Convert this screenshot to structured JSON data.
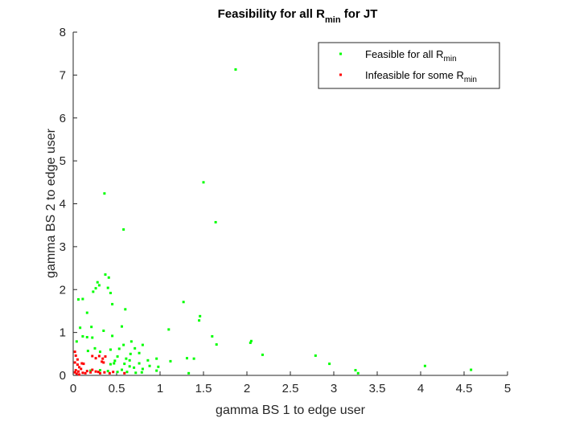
{
  "chart_data": {
    "type": "scatter",
    "title": {
      "main": "Feasibility for all R",
      "sub": "min",
      "tail": " for JT"
    },
    "xlabel": "gamma BS 1 to edge user",
    "ylabel": "gamma BS 2 to edge user",
    "xlim": [
      0,
      5
    ],
    "ylim": [
      0,
      8
    ],
    "xticks": [
      0,
      0.5,
      1,
      1.5,
      2,
      2.5,
      3,
      3.5,
      4,
      4.5,
      5
    ],
    "xtick_labels": [
      "0",
      "0.5",
      "1",
      "1.5",
      "2",
      "2.5",
      "3",
      "3.5",
      "4",
      "4.5",
      "5"
    ],
    "yticks": [
      0,
      1,
      2,
      3,
      4,
      5,
      6,
      7,
      8
    ],
    "ytick_labels": [
      "0",
      "1",
      "2",
      "3",
      "4",
      "5",
      "6",
      "7",
      "8"
    ],
    "grid": false,
    "legend_position": "top-right",
    "series": [
      {
        "name": "Feasible for all R",
        "name_sub": "min",
        "color": "#00ff00",
        "points": [
          [
            1.87,
            7.13
          ],
          [
            1.5,
            4.5
          ],
          [
            1.64,
            3.57
          ],
          [
            0.36,
            4.24
          ],
          [
            0.58,
            3.4
          ],
          [
            0.37,
            2.35
          ],
          [
            0.41,
            2.28
          ],
          [
            0.28,
            2.17
          ],
          [
            0.3,
            2.1
          ],
          [
            0.23,
            1.95
          ],
          [
            0.26,
            2.03
          ],
          [
            0.4,
            2.04
          ],
          [
            0.43,
            1.92
          ],
          [
            0.06,
            1.77
          ],
          [
            0.11,
            1.78
          ],
          [
            0.45,
            1.66
          ],
          [
            0.6,
            1.54
          ],
          [
            0.16,
            1.46
          ],
          [
            1.27,
            1.71
          ],
          [
            1.46,
            1.38
          ],
          [
            1.45,
            1.28
          ],
          [
            0.08,
            1.11
          ],
          [
            0.21,
            1.13
          ],
          [
            0.56,
            1.14
          ],
          [
            0.35,
            1.04
          ],
          [
            0.45,
            0.92
          ],
          [
            1.1,
            1.07
          ],
          [
            1.6,
            0.91
          ],
          [
            0.11,
            0.91
          ],
          [
            0.16,
            0.89
          ],
          [
            0.22,
            0.88
          ],
          [
            0.04,
            0.79
          ],
          [
            0.67,
            0.79
          ],
          [
            0.58,
            0.71
          ],
          [
            0.8,
            0.71
          ],
          [
            1.65,
            0.72
          ],
          [
            2.05,
            0.8
          ],
          [
            2.04,
            0.76
          ],
          [
            0.25,
            0.63
          ],
          [
            0.43,
            0.6
          ],
          [
            0.53,
            0.62
          ],
          [
            0.71,
            0.63
          ],
          [
            0.17,
            0.57
          ],
          [
            0.31,
            0.55
          ],
          [
            0.76,
            0.52
          ],
          [
            0.66,
            0.5
          ],
          [
            0.51,
            0.44
          ],
          [
            0.96,
            0.39
          ],
          [
            1.31,
            0.4
          ],
          [
            1.39,
            0.39
          ],
          [
            1.12,
            0.33
          ],
          [
            0.48,
            0.34
          ],
          [
            0.61,
            0.39
          ],
          [
            0.65,
            0.35
          ],
          [
            0.59,
            0.27
          ],
          [
            0.76,
            0.28
          ],
          [
            0.86,
            0.35
          ],
          [
            0.65,
            0.21
          ],
          [
            0.7,
            0.18
          ],
          [
            0.8,
            0.15
          ],
          [
            0.88,
            0.22
          ],
          [
            0.98,
            0.2
          ],
          [
            0.43,
            0.26
          ],
          [
            0.47,
            0.28
          ],
          [
            0.51,
            0.08
          ],
          [
            0.56,
            0.13
          ],
          [
            0.62,
            0.08
          ],
          [
            0.72,
            0.06
          ],
          [
            0.79,
            0.07
          ],
          [
            0.96,
            0.11
          ],
          [
            0.31,
            0.12
          ],
          [
            0.4,
            0.1
          ],
          [
            0.2,
            0.11
          ],
          [
            1.33,
            0.05
          ],
          [
            2.18,
            0.48
          ],
          [
            2.79,
            0.46
          ],
          [
            2.95,
            0.27
          ],
          [
            3.25,
            0.12
          ],
          [
            3.28,
            0.05
          ],
          [
            4.05,
            0.22
          ],
          [
            4.58,
            0.13
          ]
        ]
      },
      {
        "name": "Infeasible for some R",
        "name_sub": "min",
        "color": "#ff0000",
        "points": [
          [
            0.02,
            0.55
          ],
          [
            0.03,
            0.46
          ],
          [
            0.05,
            0.37
          ],
          [
            0.02,
            0.3
          ],
          [
            0.05,
            0.25
          ],
          [
            0.07,
            0.19
          ],
          [
            0.03,
            0.12
          ],
          [
            0.06,
            0.09
          ],
          [
            0.02,
            0.07
          ],
          [
            0.04,
            0.04
          ],
          [
            0.07,
            0.02
          ],
          [
            0.1,
            0.28
          ],
          [
            0.12,
            0.27
          ],
          [
            0.09,
            0.15
          ],
          [
            0.11,
            0.06
          ],
          [
            0.14,
            0.05
          ],
          [
            0.16,
            0.1
          ],
          [
            0.2,
            0.07
          ],
          [
            0.22,
            0.45
          ],
          [
            0.26,
            0.4
          ],
          [
            0.3,
            0.45
          ],
          [
            0.34,
            0.39
          ],
          [
            0.37,
            0.44
          ],
          [
            0.33,
            0.32
          ],
          [
            0.35,
            0.3
          ],
          [
            0.22,
            0.13
          ],
          [
            0.26,
            0.09
          ],
          [
            0.29,
            0.08
          ],
          [
            0.36,
            0.07
          ],
          [
            0.42,
            0.05
          ],
          [
            0.46,
            0.08
          ],
          [
            0.59,
            0.05
          ],
          [
            0.31,
            0.05
          ]
        ]
      }
    ]
  }
}
